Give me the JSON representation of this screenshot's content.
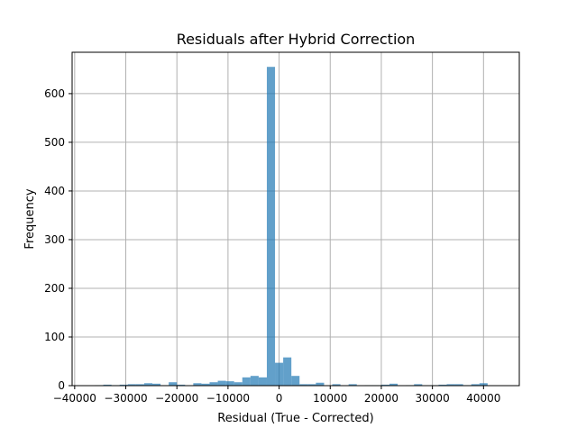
{
  "colors": {
    "bar": "#1f77b4",
    "bar_opacity": 0.7,
    "grid": "#b0b0b0",
    "axis": "#000000",
    "background": "#ffffff"
  },
  "chart_data": {
    "type": "bar",
    "title": "Residuals after Hybrid Correction",
    "xlabel": "Residual (True - Corrected)",
    "ylabel": "Frequency",
    "grid": true,
    "xlim": [
      -40500,
      47000
    ],
    "ylim": [
      0,
      685
    ],
    "xticks": [
      -40000,
      -30000,
      -20000,
      -10000,
      0,
      10000,
      20000,
      30000,
      40000
    ],
    "xtick_labels": [
      "−40000",
      "−30000",
      "−20000",
      "−10000",
      "0",
      "10000",
      "20000",
      "30000",
      "40000"
    ],
    "yticks": [
      0,
      100,
      200,
      300,
      400,
      500,
      600
    ],
    "ytick_labels": [
      "0",
      "100",
      "200",
      "300",
      "400",
      "500",
      "600"
    ],
    "bin_edges": [
      -36000,
      -34400,
      -32800,
      -31200,
      -29600,
      -28000,
      -26400,
      -24800,
      -23200,
      -21600,
      -20000,
      -18400,
      -16800,
      -15200,
      -13600,
      -12000,
      -10400,
      -8800,
      -7200,
      -5600,
      -4000,
      -2400,
      -800,
      800,
      2400,
      4000,
      5600,
      7200,
      8800,
      10400,
      12000,
      13600,
      15200,
      16800,
      18400,
      20000,
      21600,
      23200,
      24800,
      26400,
      28000,
      29600,
      31200,
      32800,
      34400,
      36000,
      37600,
      39200,
      40800,
      42400
    ],
    "counts": [
      1,
      2,
      1,
      2,
      3,
      3,
      5,
      4,
      1,
      7,
      2,
      0,
      5,
      4,
      7,
      10,
      9,
      7,
      17,
      20,
      17,
      655,
      47,
      58,
      20,
      3,
      3,
      6,
      0,
      3,
      0,
      3,
      0,
      1,
      1,
      2,
      4,
      0,
      1,
      3,
      0,
      1,
      2,
      3,
      3,
      1,
      3,
      5,
      0
    ]
  }
}
